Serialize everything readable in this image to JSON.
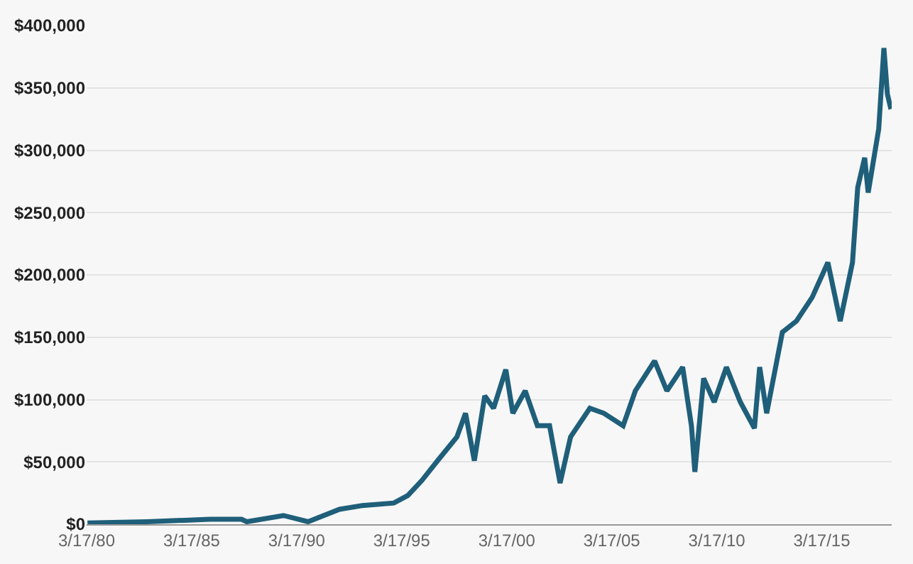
{
  "chart_data": {
    "type": "line",
    "grid": "y",
    "legend": false,
    "line_style": "solid",
    "marker": "none",
    "x": [
      "1980-04",
      "1983-02",
      "1986-02",
      "1987-08",
      "1987-11",
      "1989-08",
      "1990-10",
      "1992-04",
      "1993-05",
      "1994-11",
      "1995-07",
      "1996-03",
      "1996-12",
      "1997-11",
      "1998-04",
      "1998-09",
      "1999-03",
      "1999-08",
      "2000-03",
      "2000-07",
      "2001-02",
      "2001-09",
      "2002-04",
      "2002-10",
      "2003-04",
      "2004-03",
      "2004-11",
      "2005-10",
      "2006-05",
      "2007-04",
      "2007-11",
      "2008-08",
      "2009-01",
      "2009-03",
      "2009-08",
      "2010-02",
      "2010-09",
      "2011-05",
      "2012-01",
      "2012-04",
      "2012-08",
      "2013-05",
      "2014-01",
      "2014-10",
      "2015-07",
      "2016-02",
      "2016-09",
      "2016-12",
      "2017-04",
      "2017-06",
      "2017-12",
      "2018-03",
      "2018-05",
      "2018-07"
    ],
    "series": [
      {
        "color": "#1f5f7a",
        "values": [
          1000,
          2000,
          4000,
          4000,
          2000,
          7000,
          2000,
          12000,
          15000,
          17000,
          23000,
          35000,
          51000,
          70000,
          89000,
          51000,
          103000,
          93000,
          124000,
          89000,
          107000,
          79000,
          79000,
          33000,
          70000,
          93000,
          89000,
          79000,
          107000,
          131000,
          107000,
          126000,
          79000,
          42000,
          117000,
          98000,
          126000,
          98000,
          77000,
          126000,
          89000,
          154000,
          163000,
          182000,
          210000,
          163000,
          210000,
          270000,
          294000,
          266000,
          317000,
          382000,
          345000,
          333000
        ]
      }
    ],
    "xlim": [
      "1980-03-17",
      "2018-07-15"
    ],
    "xticks": [
      {
        "value": "1980-03-17",
        "label": "3/17/80"
      },
      {
        "value": "1985-03-17",
        "label": "3/17/85"
      },
      {
        "value": "1990-03-17",
        "label": "3/17/90"
      },
      {
        "value": "1995-03-17",
        "label": "3/17/95"
      },
      {
        "value": "2000-03-17",
        "label": "3/17/00"
      },
      {
        "value": "2005-03-17",
        "label": "3/17/05"
      },
      {
        "value": "2010-03-17",
        "label": "3/17/10"
      },
      {
        "value": "2015-03-17",
        "label": "3/17/15"
      }
    ],
    "ylim": [
      0,
      400000
    ],
    "yticks": [
      {
        "value": 0,
        "label": "$0"
      },
      {
        "value": 50000,
        "label": "$50,000"
      },
      {
        "value": 100000,
        "label": "$100,000"
      },
      {
        "value": 150000,
        "label": "$150,000"
      },
      {
        "value": 200000,
        "label": "$200,000"
      },
      {
        "value": 250000,
        "label": "$250,000"
      },
      {
        "value": 300000,
        "label": "$300,000"
      },
      {
        "value": 350000,
        "label": "$350,000"
      },
      {
        "value": 400000,
        "label": "$400,000"
      }
    ]
  }
}
